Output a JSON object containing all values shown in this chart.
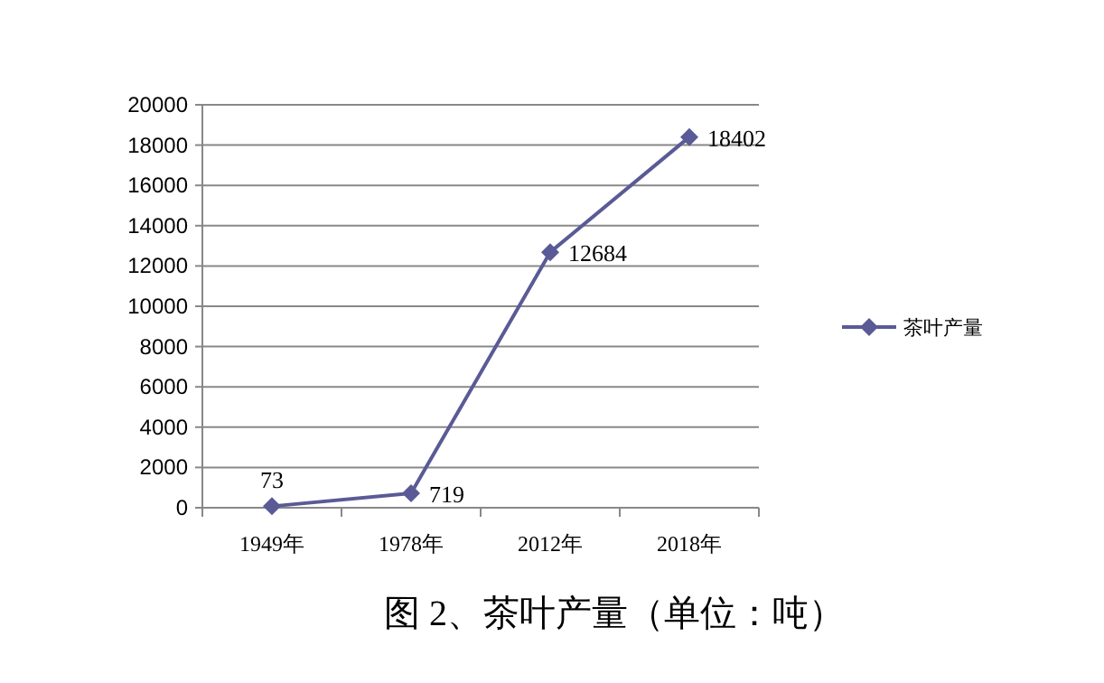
{
  "chart_data": {
    "type": "line",
    "title": "图 2、茶叶产量（单位：吨）",
    "categories": [
      "1949年",
      "1978年",
      "2012年",
      "2018年"
    ],
    "series": [
      {
        "name": "茶叶产量",
        "color": "#5a5a96",
        "values": [
          73,
          719,
          12684,
          18402
        ]
      }
    ],
    "ylim": [
      0,
      20000
    ],
    "yticks": [
      0,
      2000,
      4000,
      6000,
      8000,
      10000,
      12000,
      14000,
      16000,
      18000,
      20000
    ],
    "grid": "y",
    "legend": "right",
    "marker": "diamond",
    "line_style": "solid",
    "data_labels": true
  }
}
